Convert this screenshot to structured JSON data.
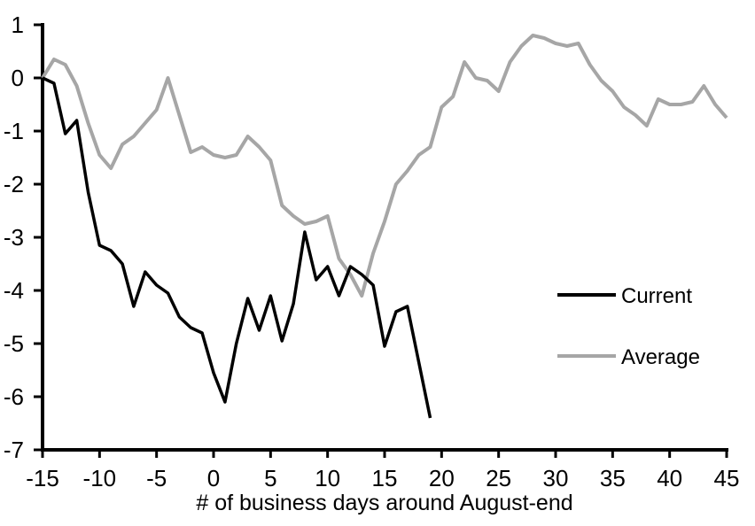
{
  "chart_data": {
    "type": "line",
    "title": "",
    "xlabel": "# of business days around August-end",
    "ylabel": "",
    "xlim": [
      -15,
      45
    ],
    "ylim": [
      -7,
      1
    ],
    "xticks": [
      -15,
      -10,
      -5,
      0,
      5,
      10,
      15,
      20,
      25,
      30,
      35,
      40,
      45
    ],
    "yticks": [
      1,
      0,
      -1,
      -2,
      -3,
      -4,
      -5,
      -6,
      -7
    ],
    "grid": false,
    "legend_position": "middle-right",
    "axis_color": "#000000",
    "background": "#ffffff",
    "series": [
      {
        "name": "Current",
        "color": "#000000",
        "z": 2,
        "x": [
          -15,
          -14,
          -13,
          -12,
          -11,
          -10,
          -9,
          -8,
          -7,
          -6,
          -5,
          -4,
          -3,
          -2,
          -1,
          0,
          1,
          2,
          3,
          4,
          5,
          6,
          7,
          8,
          9,
          10,
          11,
          12,
          13,
          14,
          15,
          16,
          17,
          18,
          19
        ],
        "values": [
          0.0,
          -0.1,
          -1.05,
          -0.8,
          -2.15,
          -3.15,
          -3.25,
          -3.5,
          -4.3,
          -3.65,
          -3.9,
          -4.05,
          -4.5,
          -4.7,
          -4.8,
          -5.55,
          -6.1,
          -5.0,
          -4.15,
          -4.75,
          -4.1,
          -4.95,
          -4.25,
          -2.9,
          -3.8,
          -3.55,
          -4.1,
          -3.55,
          -3.7,
          -3.9,
          -5.05,
          -4.4,
          -4.3,
          -5.35,
          -6.4
        ]
      },
      {
        "name": "Average",
        "color": "#a6a6a6",
        "z": 1,
        "x": [
          -15,
          -14,
          -13,
          -12,
          -11,
          -10,
          -9,
          -8,
          -7,
          -6,
          -5,
          -4,
          -3,
          -2,
          -1,
          0,
          1,
          2,
          3,
          4,
          5,
          6,
          7,
          8,
          9,
          10,
          11,
          12,
          13,
          14,
          15,
          16,
          17,
          18,
          19,
          20,
          21,
          22,
          23,
          24,
          25,
          26,
          27,
          28,
          29,
          30,
          31,
          32,
          33,
          34,
          35,
          36,
          37,
          38,
          39,
          40,
          41,
          42,
          43,
          44,
          45
        ],
        "values": [
          0.0,
          0.35,
          0.25,
          -0.15,
          -0.85,
          -1.45,
          -1.7,
          -1.25,
          -1.1,
          -0.85,
          -0.6,
          0.0,
          -0.7,
          -1.4,
          -1.3,
          -1.45,
          -1.5,
          -1.45,
          -1.1,
          -1.3,
          -1.55,
          -2.4,
          -2.6,
          -2.75,
          -2.7,
          -2.6,
          -3.4,
          -3.7,
          -4.1,
          -3.3,
          -2.7,
          -2.0,
          -1.75,
          -1.45,
          -1.3,
          -0.55,
          -0.35,
          0.3,
          0.0,
          -0.05,
          -0.25,
          0.3,
          0.6,
          0.8,
          0.75,
          0.65,
          0.6,
          0.65,
          0.25,
          -0.05,
          -0.25,
          -0.55,
          -0.7,
          -0.9,
          -0.4,
          -0.5,
          -0.5,
          -0.45,
          -0.15,
          -0.5,
          -0.75
        ]
      }
    ]
  }
}
